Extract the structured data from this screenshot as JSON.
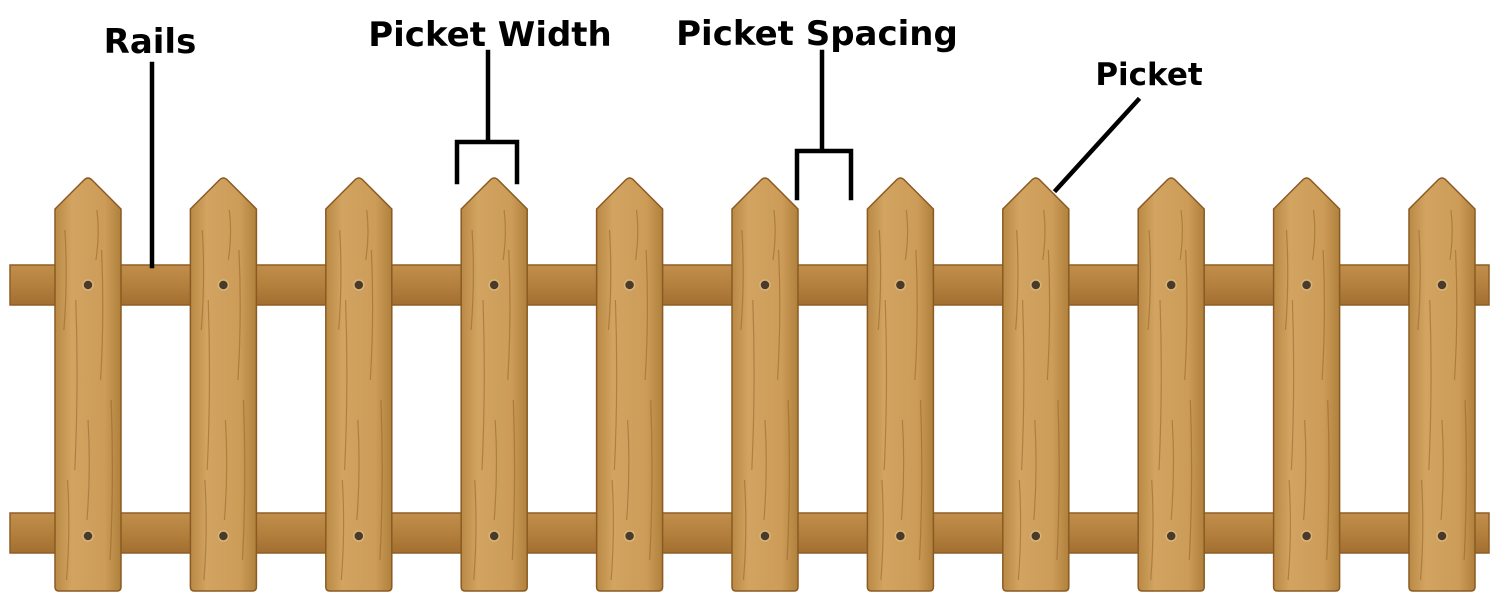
{
  "labels": {
    "rails": "Rails",
    "picket_width": "Picket Width",
    "picket_spacing": "Picket Spacing",
    "picket": "Picket"
  },
  "fence": {
    "picket_count": 11,
    "rail_count": 2,
    "colors": {
      "picket": "#C99A56",
      "picket_outline": "#8A5A22",
      "rail": "#B5813E",
      "rail_outline": "#8F5E24",
      "grain": "#93622A",
      "nail_hole": "#4A3A2A"
    }
  }
}
